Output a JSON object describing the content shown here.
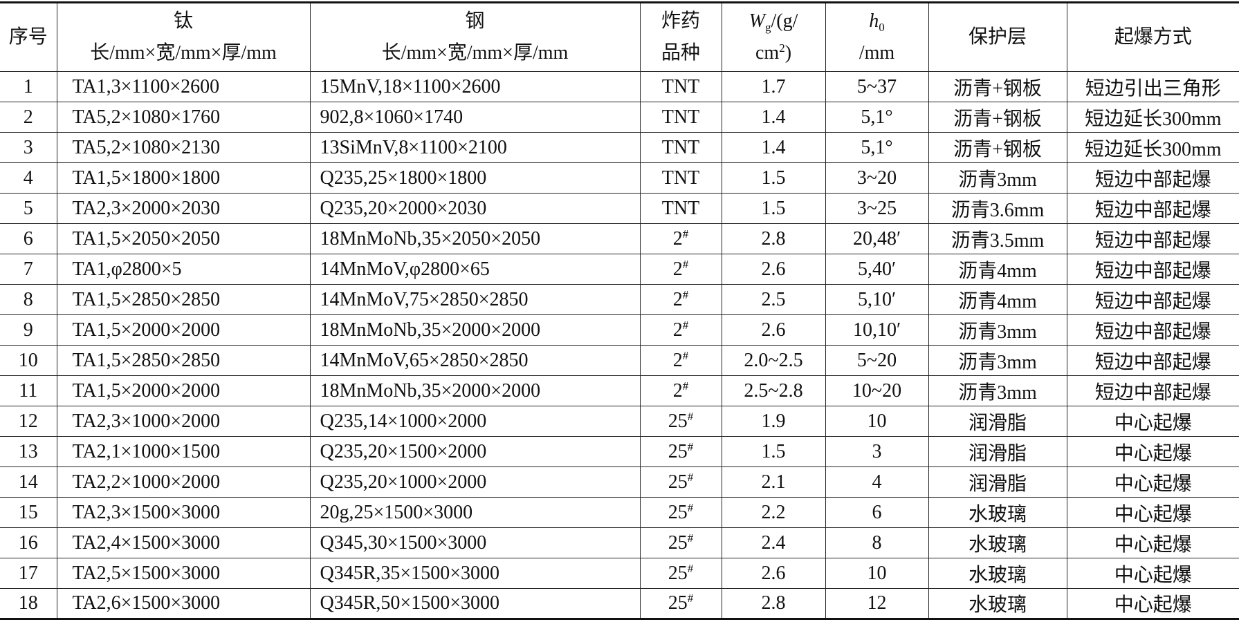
{
  "header": {
    "columns": [
      [
        "序号"
      ],
      [
        "钛",
        "长/mm×宽/mm×厚/mm"
      ],
      [
        "钢",
        "长/mm×宽/mm×厚/mm"
      ],
      [
        "炸药",
        "品种"
      ],
      [
        "W",
        "g",
        "/(g/",
        "cm",
        "2",
        ")"
      ],
      [
        "h",
        "0",
        "/mm"
      ],
      [
        "保护层"
      ],
      [
        "起爆方式"
      ]
    ]
  },
  "table": {
    "rows": [
      [
        "1",
        "TA1,3×1100×2600",
        "15MnV,18×1100×2600",
        "TNT",
        "1.7",
        "5~37",
        "沥青+钢板",
        "短边引出三角形"
      ],
      [
        "2",
        "TA5,2×1080×1760",
        "902,8×1060×1740",
        "TNT",
        "1.4",
        "5,1°",
        "沥青+钢板",
        "短边延长300mm"
      ],
      [
        "3",
        "TA5,2×1080×2130",
        "13SiMnV,8×1100×2100",
        "TNT",
        "1.4",
        "5,1°",
        "沥青+钢板",
        "短边延长300mm"
      ],
      [
        "4",
        "TA1,5×1800×1800",
        "Q235,25×1800×1800",
        "TNT",
        "1.5",
        "3~20",
        "沥青3mm",
        "短边中部起爆"
      ],
      [
        "5",
        "TA2,3×2000×2030",
        "Q235,20×2000×2030",
        "TNT",
        "1.5",
        "3~25",
        "沥青3.6mm",
        "短边中部起爆"
      ],
      [
        "6",
        "TA1,5×2050×2050",
        "18MnMoNb,35×2050×2050",
        "2#",
        "2.8",
        "20,48′",
        "沥青3.5mm",
        "短边中部起爆"
      ],
      [
        "7",
        "TA1,φ2800×5",
        "14MnMoV,φ2800×65",
        "2#",
        "2.6",
        "5,40′",
        "沥青4mm",
        "短边中部起爆"
      ],
      [
        "8",
        "TA1,5×2850×2850",
        "14MnMoV,75×2850×2850",
        "2#",
        "2.5",
        "5,10′",
        "沥青4mm",
        "短边中部起爆"
      ],
      [
        "9",
        "TA1,5×2000×2000",
        "18MnMoNb,35×2000×2000",
        "2#",
        "2.6",
        "10,10′",
        "沥青3mm",
        "短边中部起爆"
      ],
      [
        "10",
        "TA1,5×2850×2850",
        "14MnMoV,65×2850×2850",
        "2#",
        "2.0~2.5",
        "5~20",
        "沥青3mm",
        "短边中部起爆"
      ],
      [
        "11",
        "TA1,5×2000×2000",
        "18MnMoNb,35×2000×2000",
        "2#",
        "2.5~2.8",
        "10~20",
        "沥青3mm",
        "短边中部起爆"
      ],
      [
        "12",
        "TA2,3×1000×2000",
        "Q235,14×1000×2000",
        "25#",
        "1.9",
        "10",
        "润滑脂",
        "中心起爆"
      ],
      [
        "13",
        "TA2,1×1000×1500",
        "Q235,20×1500×2000",
        "25#",
        "1.5",
        "3",
        "润滑脂",
        "中心起爆"
      ],
      [
        "14",
        "TA2,2×1000×2000",
        "Q235,20×1000×2000",
        "25#",
        "2.1",
        "4",
        "润滑脂",
        "中心起爆"
      ],
      [
        "15",
        "TA2,3×1500×3000",
        "20g,25×1500×3000",
        "25#",
        "2.2",
        "6",
        "水玻璃",
        "中心起爆"
      ],
      [
        "16",
        "TA2,4×1500×3000",
        "Q345,30×1500×3000",
        "25#",
        "2.4",
        "8",
        "水玻璃",
        "中心起爆"
      ],
      [
        "17",
        "TA2,5×1500×3000",
        "Q345R,35×1500×3000",
        "25#",
        "2.6",
        "10",
        "水玻璃",
        "中心起爆"
      ],
      [
        "18",
        "TA2,6×1500×3000",
        "Q345R,50×1500×3000",
        "25#",
        "2.8",
        "12",
        "水玻璃",
        "中心起爆"
      ]
    ]
  }
}
